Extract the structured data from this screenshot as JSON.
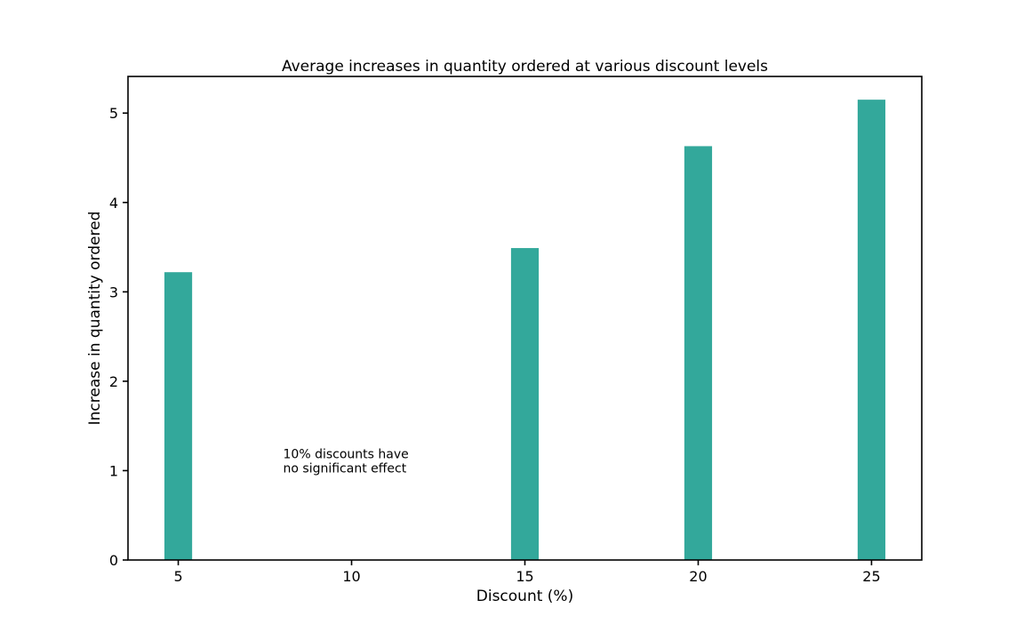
{
  "chart_data": {
    "type": "bar",
    "title": "Average increases in quantity ordered at various discount levels",
    "xlabel": "Discount (%)",
    "ylabel": "Increase in quantity ordered",
    "x": [
      5,
      15,
      20,
      25
    ],
    "values": [
      3.22,
      3.49,
      4.63,
      5.15
    ],
    "bar_width": 0.8,
    "xlim": [
      3.55,
      26.45
    ],
    "ylim": [
      0,
      5.41
    ],
    "xticks": [
      5,
      10,
      15,
      20,
      25
    ],
    "yticks": [
      0,
      1,
      2,
      3,
      4,
      5
    ],
    "bar_color": "#33a89b",
    "grid": false,
    "annotation": {
      "lines": [
        "10% discounts have",
        "no significant effect"
      ],
      "x": 8,
      "y": 1.1
    }
  }
}
